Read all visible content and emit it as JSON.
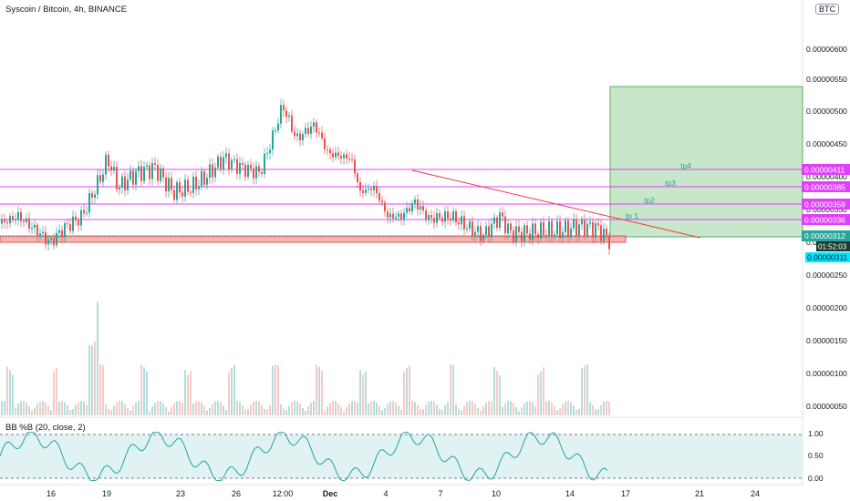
{
  "header": {
    "title": "Syscoin / Bitcoin, 4h, BINANCE",
    "currency_badge": "BTC"
  },
  "colors": {
    "up": "#26a69a",
    "down": "#ef5350",
    "level_line": "#e040fb",
    "level_label_bg": "#e040fb",
    "trendline": "#f23645",
    "target_zone": "#c8e6c9",
    "target_zone_border": "#43a047",
    "stop_zone": "#f4b5b0",
    "current_price": "#26a69a",
    "bb_line": "#ef5350",
    "bb_fill": "#e0f2f1"
  },
  "price_axis": {
    "ticks": [
      "0.00000600",
      "0.00000550",
      "0.00000500",
      "0.00000450",
      "0.00000400",
      "0.00000350",
      "0.00000300",
      "0.00000250",
      "0.00000200",
      "0.00000150",
      "0.00000100",
      "0.00000050"
    ]
  },
  "levels": [
    {
      "price": "0.00000411",
      "tag": "tp4"
    },
    {
      "price": "0.00000385",
      "tag": "tp3"
    },
    {
      "price": "0.00000359",
      "tag": "tp2"
    },
    {
      "price": "0.00000336",
      "tag": "tp 1"
    }
  ],
  "current_price": {
    "value": "0.00000312",
    "countdown": "01:52:03",
    "stop": "0.00000311"
  },
  "bb_panel": {
    "title": "BB %B (20, close, 2)",
    "ticks": [
      "1.00",
      "0.50",
      "0.00"
    ]
  },
  "time_axis": {
    "labels": [
      "16",
      "19",
      "23",
      "26",
      "12:00",
      "Dec",
      "4",
      "7",
      "10",
      "14",
      "17",
      "21",
      "24"
    ]
  },
  "chart_data": {
    "type": "candlestick",
    "title": "Syscoin / Bitcoin, 4h, BINANCE",
    "ylim": [
      3e-07,
      6.5e-07
    ],
    "x": [
      "16",
      "19",
      "23",
      "26",
      "12:00",
      "Dec",
      "4",
      "7",
      "10",
      "14",
      "17",
      "21",
      "24"
    ],
    "close_path": [
      {
        "x": "16",
        "y": 3e-06
      },
      {
        "x": "19",
        "y": 4.3e-06
      },
      {
        "x": "23",
        "y": 4.2e-06
      },
      {
        "x": "26",
        "y": 4.5e-06
      },
      {
        "x": "12:00",
        "y": 5.5e-06
      },
      {
        "x": "Dec",
        "y": 4.9e-06
      },
      {
        "x": "4",
        "y": 3.8e-06
      },
      {
        "x": "7",
        "y": 3.6e-06
      },
      {
        "x": "10",
        "y": 3.2e-06
      },
      {
        "x": "14",
        "y": 3.3e-06
      },
      {
        "x": "14",
        "y": 3.1e-06
      }
    ],
    "indicator": {
      "name": "BB %B (20, close, 2)",
      "ylim": [
        0,
        1
      ]
    }
  }
}
